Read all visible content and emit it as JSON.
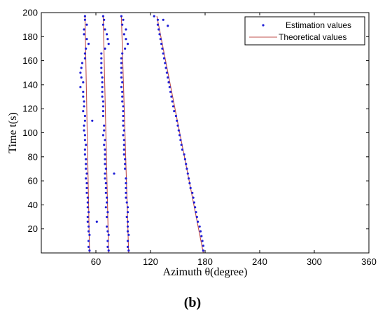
{
  "chart_data": {
    "type": "scatter",
    "title": "",
    "xlabel": "Azimuth θ(degree)",
    "ylabel": "Time t(s)",
    "caption": "(b)",
    "xlim": [
      0,
      360
    ],
    "ylim": [
      0,
      200
    ],
    "xticks": [
      0,
      60,
      120,
      180,
      240,
      300,
      360
    ],
    "xtick_labels": [
      "",
      "60",
      "120",
      "180",
      "240",
      "300",
      "360"
    ],
    "yticks": [
      20,
      40,
      60,
      80,
      100,
      120,
      140,
      160,
      180,
      200
    ],
    "ytick_labels": [
      "20",
      "40",
      "60",
      "80",
      "100",
      "120",
      "140",
      "160",
      "180",
      "200"
    ],
    "grid": false,
    "legend_position": "top-right",
    "colors": {
      "estimation": "#1f1fd6",
      "theoretical": "#c0504d"
    },
    "theoretical_lines": [
      {
        "x": [
          48,
          53
        ],
        "y": [
          197,
          0
        ]
      },
      {
        "x": [
          68,
          74
        ],
        "y": [
          197,
          0
        ]
      },
      {
        "x": [
          88,
          96
        ],
        "y": [
          197,
          0
        ]
      },
      {
        "x": [
          127,
          178
        ],
        "y": [
          197,
          0
        ]
      }
    ],
    "series": [
      {
        "name": "Estimation values",
        "points": [
          [
            53,
            2
          ],
          [
            52,
            5
          ],
          [
            52,
            10
          ],
          [
            53,
            15
          ],
          [
            52,
            18
          ],
          [
            52,
            22
          ],
          [
            51,
            26
          ],
          [
            51,
            30
          ],
          [
            52,
            34
          ],
          [
            51,
            38
          ],
          [
            51,
            42
          ],
          [
            51,
            46
          ],
          [
            50,
            50
          ],
          [
            50,
            54
          ],
          [
            50,
            58
          ],
          [
            49,
            62
          ],
          [
            50,
            66
          ],
          [
            49,
            70
          ],
          [
            49,
            74
          ],
          [
            49,
            78
          ],
          [
            48,
            82
          ],
          [
            48,
            86
          ],
          [
            49,
            90
          ],
          [
            48,
            94
          ],
          [
            48,
            98
          ],
          [
            47,
            102
          ],
          [
            47,
            106
          ],
          [
            48,
            110
          ],
          [
            48,
            114
          ],
          [
            46,
            118
          ],
          [
            47,
            122
          ],
          [
            47,
            126
          ],
          [
            46,
            130
          ],
          [
            46,
            134
          ],
          [
            43,
            138
          ],
          [
            46,
            142
          ],
          [
            44,
            146
          ],
          [
            43,
            150
          ],
          [
            44,
            154
          ],
          [
            45,
            158
          ],
          [
            48,
            162
          ],
          [
            48,
            166
          ],
          [
            49,
            170
          ],
          [
            52,
            174
          ],
          [
            50,
            178
          ],
          [
            47,
            182
          ],
          [
            47,
            186
          ],
          [
            50,
            190
          ],
          [
            48,
            194
          ],
          [
            48,
            197
          ],
          [
            74,
            2
          ],
          [
            73,
            5
          ],
          [
            73,
            10
          ],
          [
            74,
            15
          ],
          [
            73,
            18
          ],
          [
            72,
            22
          ],
          [
            61,
            26
          ],
          [
            72,
            30
          ],
          [
            73,
            34
          ],
          [
            71,
            38
          ],
          [
            72,
            42
          ],
          [
            72,
            46
          ],
          [
            71,
            50
          ],
          [
            71,
            54
          ],
          [
            71,
            58
          ],
          [
            70,
            62
          ],
          [
            70,
            66
          ],
          [
            71,
            70
          ],
          [
            70,
            74
          ],
          [
            70,
            78
          ],
          [
            70,
            82
          ],
          [
            70,
            86
          ],
          [
            69,
            90
          ],
          [
            70,
            94
          ],
          [
            68,
            98
          ],
          [
            69,
            102
          ],
          [
            69,
            106
          ],
          [
            56,
            110
          ],
          [
            68,
            114
          ],
          [
            68,
            118
          ],
          [
            68,
            122
          ],
          [
            68,
            126
          ],
          [
            67,
            130
          ],
          [
            67,
            134
          ],
          [
            67,
            138
          ],
          [
            67,
            142
          ],
          [
            67,
            146
          ],
          [
            66,
            150
          ],
          [
            66,
            154
          ],
          [
            66,
            158
          ],
          [
            66,
            162
          ],
          [
            66,
            166
          ],
          [
            70,
            170
          ],
          [
            74,
            174
          ],
          [
            73,
            178
          ],
          [
            72,
            182
          ],
          [
            70,
            186
          ],
          [
            68,
            190
          ],
          [
            69,
            194
          ],
          [
            68,
            197
          ],
          [
            96,
            2
          ],
          [
            95,
            5
          ],
          [
            95,
            10
          ],
          [
            96,
            15
          ],
          [
            95,
            18
          ],
          [
            95,
            22
          ],
          [
            95,
            26
          ],
          [
            94,
            30
          ],
          [
            95,
            34
          ],
          [
            95,
            38
          ],
          [
            94,
            42
          ],
          [
            93,
            46
          ],
          [
            93,
            50
          ],
          [
            93,
            54
          ],
          [
            93,
            58
          ],
          [
            93,
            62
          ],
          [
            80,
            66
          ],
          [
            92,
            70
          ],
          [
            92,
            74
          ],
          [
            92,
            78
          ],
          [
            91,
            82
          ],
          [
            91,
            86
          ],
          [
            91,
            90
          ],
          [
            91,
            94
          ],
          [
            90,
            98
          ],
          [
            91,
            102
          ],
          [
            90,
            106
          ],
          [
            90,
            110
          ],
          [
            90,
            114
          ],
          [
            90,
            118
          ],
          [
            90,
            122
          ],
          [
            89,
            126
          ],
          [
            89,
            130
          ],
          [
            89,
            134
          ],
          [
            88,
            138
          ],
          [
            89,
            142
          ],
          [
            88,
            146
          ],
          [
            88,
            150
          ],
          [
            88,
            154
          ],
          [
            88,
            158
          ],
          [
            88,
            162
          ],
          [
            89,
            166
          ],
          [
            92,
            170
          ],
          [
            95,
            174
          ],
          [
            93,
            178
          ],
          [
            91,
            182
          ],
          [
            93,
            186
          ],
          [
            89,
            190
          ],
          [
            90,
            194
          ],
          [
            88,
            197
          ],
          [
            178,
            2
          ],
          [
            178,
            6
          ],
          [
            177,
            10
          ],
          [
            176,
            14
          ],
          [
            175,
            18
          ],
          [
            174,
            22
          ],
          [
            172,
            26
          ],
          [
            171,
            30
          ],
          [
            170,
            34
          ],
          [
            169,
            38
          ],
          [
            168,
            42
          ],
          [
            167,
            46
          ],
          [
            166,
            50
          ],
          [
            164,
            54
          ],
          [
            163,
            58
          ],
          [
            162,
            62
          ],
          [
            161,
            66
          ],
          [
            160,
            70
          ],
          [
            159,
            74
          ],
          [
            158,
            78
          ],
          [
            157,
            82
          ],
          [
            155,
            86
          ],
          [
            154,
            90
          ],
          [
            153,
            94
          ],
          [
            152,
            98
          ],
          [
            151,
            102
          ],
          [
            150,
            106
          ],
          [
            149,
            110
          ],
          [
            148,
            114
          ],
          [
            146,
            118
          ],
          [
            145,
            122
          ],
          [
            144,
            126
          ],
          [
            143,
            130
          ],
          [
            142,
            134
          ],
          [
            141,
            138
          ],
          [
            140,
            142
          ],
          [
            139,
            146
          ],
          [
            138,
            150
          ],
          [
            137,
            154
          ],
          [
            136,
            158
          ],
          [
            135,
            162
          ],
          [
            134,
            166
          ],
          [
            133,
            170
          ],
          [
            132,
            174
          ],
          [
            131,
            178
          ],
          [
            130,
            182
          ],
          [
            129,
            186
          ],
          [
            128,
            190
          ],
          [
            128,
            194
          ],
          [
            124,
            197
          ],
          [
            139,
            189
          ],
          [
            134,
            194
          ]
        ]
      },
      {
        "name": "Theoretical values"
      }
    ]
  }
}
